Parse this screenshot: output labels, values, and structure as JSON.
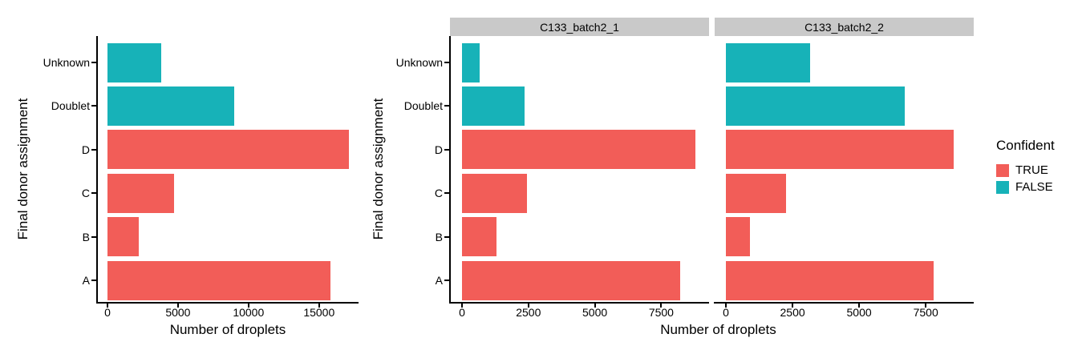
{
  "figure": {
    "background": "#FFFFFF",
    "axis_color": "#000000",
    "text_color": "#000000"
  },
  "chart_data": {
    "type": "bar",
    "orientation": "horizontal",
    "xlabel": "Number of droplets",
    "ylabel": "Final donor assignment",
    "categories_top_to_bottom": [
      "Unknown",
      "Doublet",
      "D",
      "C",
      "B",
      "A"
    ],
    "grid": "off",
    "strip_color": "#C9C9C9",
    "legend": {
      "title": "Confident",
      "position": "right",
      "entries": [
        {
          "label": "TRUE",
          "color": "#F25D58"
        },
        {
          "label": "FALSE",
          "color": "#17B2B8"
        }
      ]
    },
    "confident_by_category": {
      "Unknown": "FALSE",
      "Doublet": "FALSE",
      "D": "TRUE",
      "C": "TRUE",
      "B": "TRUE",
      "A": "TRUE"
    },
    "panels": [
      {
        "title": null,
        "x_ticks": [
          0,
          5000,
          10000,
          15000
        ],
        "x_max": 17800,
        "values": {
          "Unknown": 3800,
          "Doublet": 9000,
          "D": 17100,
          "C": 4700,
          "B": 2200,
          "A": 15800
        }
      },
      {
        "title": "C133_batch2_1",
        "x_ticks": [
          0,
          2500,
          5000,
          7500
        ],
        "x_max": 9300,
        "values": {
          "Unknown": 650,
          "Doublet": 2350,
          "D": 8800,
          "C": 2450,
          "B": 1300,
          "A": 8200
        }
      },
      {
        "title": "C133_batch2_2",
        "x_ticks": [
          0,
          2500,
          5000,
          7500
        ],
        "x_max": 9300,
        "values": {
          "Unknown": 3150,
          "Doublet": 6700,
          "D": 8550,
          "C": 2250,
          "B": 900,
          "A": 7800
        }
      }
    ]
  }
}
